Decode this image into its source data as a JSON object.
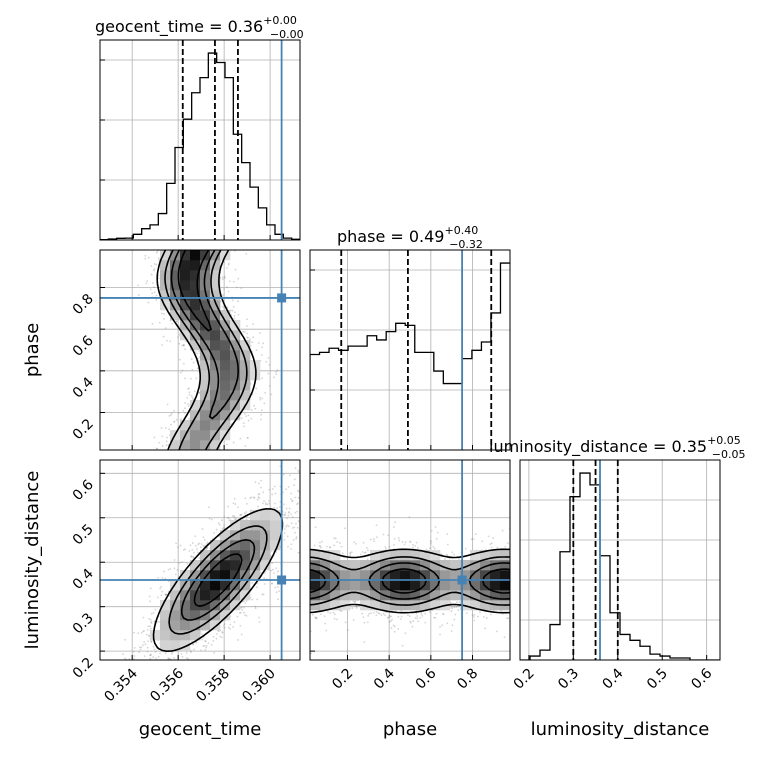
{
  "chart_data": {
    "type": "corner",
    "parameters": [
      "geocent_time",
      "phase",
      "luminosity_distance"
    ],
    "colors": {
      "truth": "#4682b4",
      "histogram": "#000000",
      "grid": "#b0b0b0",
      "samples": "#888888"
    },
    "truths": [
      0.3605,
      0.75,
      0.36
    ],
    "quantiles": [
      [
        0.3562,
        0.3576,
        0.3586
      ],
      [
        0.17,
        0.49,
        0.89
      ],
      [
        0.3,
        0.35,
        0.4
      ]
    ],
    "ranges": [
      [
        0.3526,
        0.3613
      ],
      [
        0.02,
        0.98
      ],
      [
        0.18,
        0.63
      ]
    ],
    "titles": [
      {
        "text": "geocent_time = 0.36",
        "plus": "+0.00",
        "minus": "−0.00"
      },
      {
        "text": "phase = 0.49",
        "plus": "+0.40",
        "minus": "−0.32"
      },
      {
        "text": "luminosity_distance = 0.35",
        "plus": "+0.05",
        "minus": "−0.05"
      }
    ],
    "axis_labels": {
      "x": [
        "geocent_time",
        "phase",
        "luminosity_distance"
      ],
      "y": [
        "",
        "phase",
        "luminosity_distance"
      ]
    },
    "ticks": {
      "geocent_time": {
        "values": [
          0.354,
          0.356,
          0.358,
          0.36
        ],
        "labels": [
          "0.354",
          "0.356",
          "0.358",
          "0.360"
        ]
      },
      "phase": {
        "values": [
          0.2,
          0.4,
          0.6,
          0.8
        ],
        "labels": [
          "0.2",
          "0.4",
          "0.6",
          "0.8"
        ]
      },
      "luminosity_distance": {
        "values": [
          0.2,
          0.3,
          0.4,
          0.5,
          0.6
        ],
        "labels": [
          "0.2",
          "0.3",
          "0.4",
          "0.5",
          "0.6"
        ]
      }
    },
    "histograms": [
      {
        "bin_range": [
          0.3526,
          0.3613
        ],
        "counts": [
          0.2,
          0.5,
          0.9,
          1.0,
          3.0,
          6.0,
          8.0,
          14.0,
          30.0,
          49.0,
          64.0,
          78.0,
          86.0,
          99.0,
          94.0,
          86.0,
          56.0,
          41.0,
          28.0,
          17.0,
          8.0,
          3.0,
          1.0,
          0.4
        ]
      },
      {
        "bin_range": [
          0.02,
          0.98
        ],
        "counts": [
          46,
          47,
          49,
          48,
          50,
          50,
          55,
          53,
          57,
          61,
          60,
          47,
          47,
          38,
          32,
          32,
          44,
          48,
          52,
          66,
          90
        ]
      },
      {
        "bin_range": [
          0.18,
          0.63
        ],
        "counts": [
          0,
          2,
          5,
          18,
          55,
          83,
          95,
          89,
          53,
          24,
          13,
          10,
          7,
          3,
          2,
          1,
          1,
          0,
          0,
          0
        ]
      }
    ]
  }
}
